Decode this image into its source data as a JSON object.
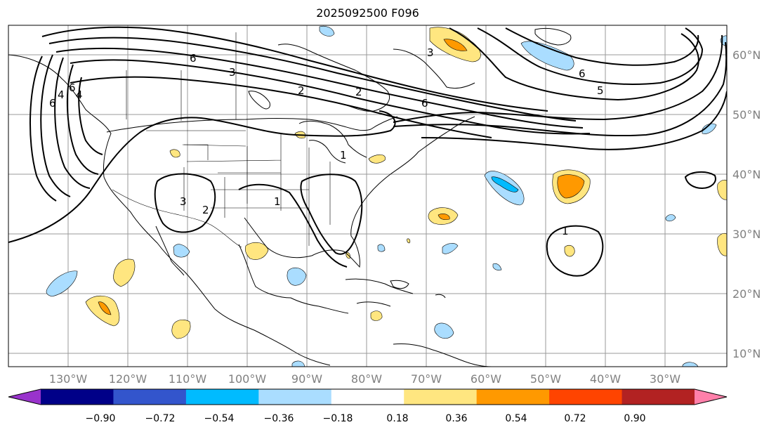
{
  "title": "2025092500 F096",
  "map": {
    "lon_labels": [
      "130°W",
      "120°W",
      "110°W",
      "100°W",
      "90°W",
      "80°W",
      "70°W",
      "60°W",
      "50°W",
      "40°W",
      "30°W"
    ],
    "lat_labels": [
      "60°N",
      "50°N",
      "40°N",
      "30°N",
      "20°N",
      "10°N"
    ],
    "contour_labels": [
      "6",
      "4",
      "6",
      "4",
      "6",
      "3",
      "2",
      "2",
      "1",
      "6",
      "3",
      "6",
      "5",
      "3",
      "2",
      "1",
      "1"
    ]
  },
  "colorbar": {
    "colors": [
      "#9933cc",
      "#000088",
      "#3355cc",
      "#00bbff",
      "#aaddff",
      "#ffffff",
      "#ffe680",
      "#ff9900",
      "#ff4400",
      "#b22222",
      "#ff80aa"
    ],
    "ticks": [
      "−0.90",
      "−0.72",
      "−0.54",
      "−0.36",
      "−0.18",
      "0.18",
      "0.36",
      "0.54",
      "0.72",
      "0.90"
    ]
  }
}
